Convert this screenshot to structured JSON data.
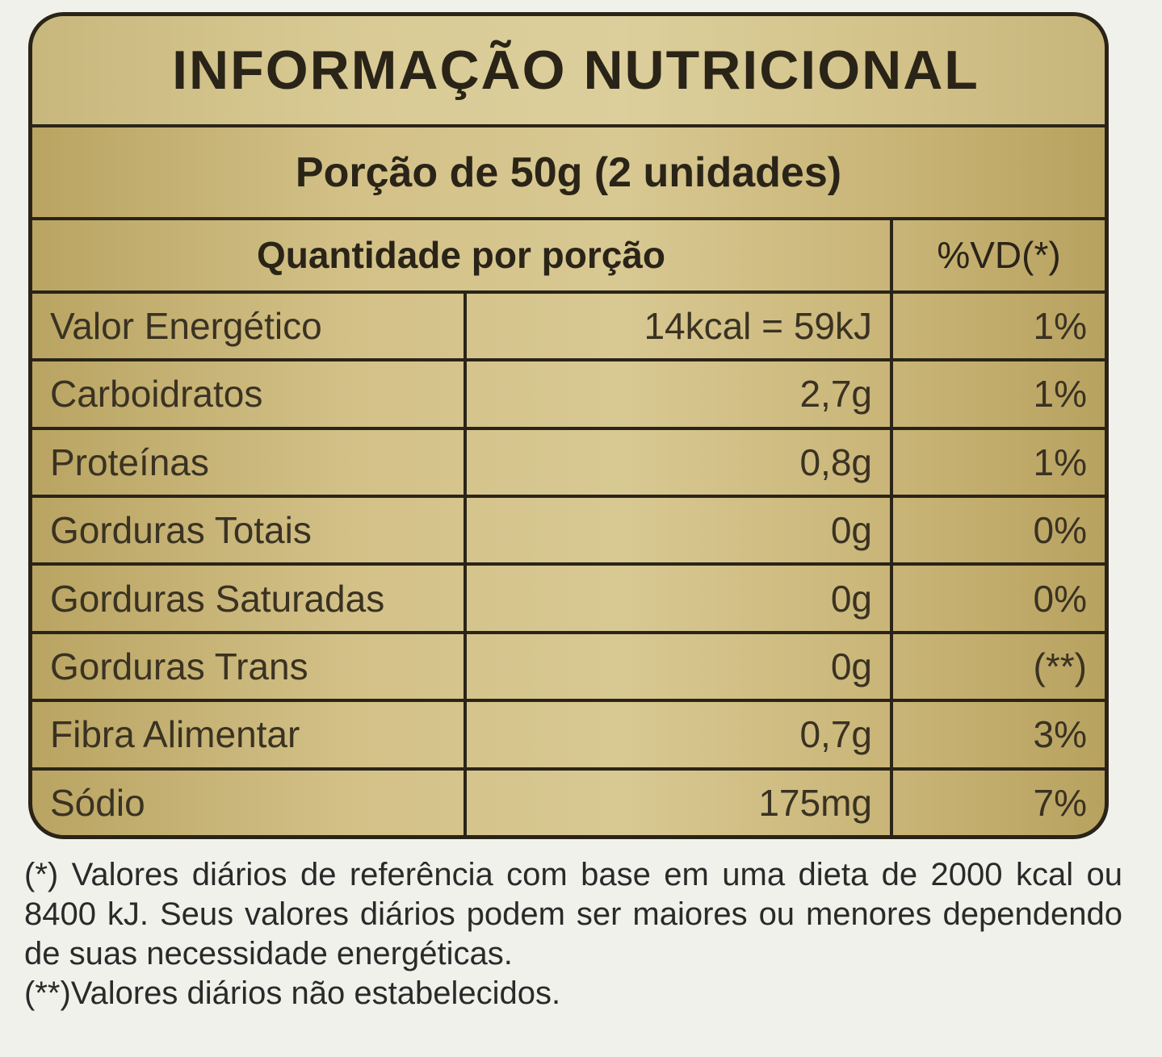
{
  "label": {
    "title": "INFORMAÇÃO NUTRICIONAL",
    "serving": "Porção de 50g (2 unidades)",
    "header": {
      "quantity": "Quantidade por porção",
      "dv": "%VD(*)"
    },
    "rows": [
      {
        "name": "Valor Energético",
        "amount": "14kcal = 59kJ",
        "dv": "1%"
      },
      {
        "name": "Carboidratos",
        "amount": "2,7g",
        "dv": "1%"
      },
      {
        "name": "Proteínas",
        "amount": "0,8g",
        "dv": "1%"
      },
      {
        "name": "Gorduras Totais",
        "amount": "0g",
        "dv": "0%"
      },
      {
        "name": "Gorduras Saturadas",
        "amount": "0g",
        "dv": "0%"
      },
      {
        "name": "Gorduras Trans",
        "amount": "0g",
        "dv": "(**)"
      },
      {
        "name": "Fibra Alimentar",
        "amount": "0,7g",
        "dv": "3%"
      },
      {
        "name": "Sódio",
        "amount": "175mg",
        "dv": "7%"
      }
    ]
  },
  "footnotes": [
    "(*) Valores diários de referência com base em uma dieta de 2000 kcal ou 8400 kJ. Seus valores diários podem ser maiores ou menores dependendo de suas necessidade energéticas.",
    "(**)Valores diários não estabelecidos."
  ]
}
